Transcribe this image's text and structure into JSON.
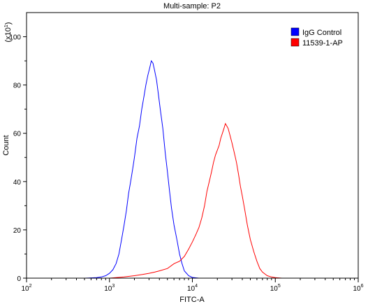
{
  "chart_data": {
    "type": "line",
    "title": "Multi-sample: P2",
    "xlabel": "FITC-A",
    "ylabel": "Count",
    "y_multiplier": "(x10",
    "y_multiplier_exp": "1",
    "y_multiplier_close": ")",
    "x_scale": "log",
    "xlim": [
      100,
      1000000
    ],
    "ylim": [
      0,
      110
    ],
    "x_ticks": [
      {
        "value": 100,
        "base": "10",
        "exp": "2"
      },
      {
        "value": 1000,
        "base": "10",
        "exp": "3"
      },
      {
        "value": 10000,
        "base": "10",
        "exp": "4"
      },
      {
        "value": 100000,
        "base": "10",
        "exp": "5"
      },
      {
        "value": 1000000,
        "base": "10",
        "exp": "6"
      }
    ],
    "y_ticks": [
      {
        "value": 0,
        "label": "0"
      },
      {
        "value": 20,
        "label": "20"
      },
      {
        "value": 40,
        "label": "40"
      },
      {
        "value": 60,
        "label": "60"
      },
      {
        "value": 80,
        "label": "80"
      },
      {
        "value": 100,
        "label": "100"
      }
    ],
    "legend_position": "top-right",
    "grid": false,
    "series": [
      {
        "name": "IgG Control",
        "color": "#0000ff",
        "points": [
          [
            500,
            0
          ],
          [
            700,
            0.2
          ],
          [
            800,
            0.5
          ],
          [
            900,
            1.0
          ],
          [
            1000,
            2.0
          ],
          [
            1100,
            3.5
          ],
          [
            1200,
            6
          ],
          [
            1300,
            10
          ],
          [
            1400,
            16
          ],
          [
            1500,
            22
          ],
          [
            1600,
            28
          ],
          [
            1700,
            35
          ],
          [
            1800,
            40
          ],
          [
            1900,
            45
          ],
          [
            2000,
            50
          ],
          [
            2150,
            58
          ],
          [
            2300,
            63
          ],
          [
            2450,
            70
          ],
          [
            2600,
            75
          ],
          [
            2750,
            80
          ],
          [
            2900,
            84
          ],
          [
            3050,
            87
          ],
          [
            3200,
            90
          ],
          [
            3350,
            89
          ],
          [
            3500,
            86
          ],
          [
            3700,
            82
          ],
          [
            3900,
            76
          ],
          [
            4100,
            70
          ],
          [
            4400,
            62
          ],
          [
            4700,
            52
          ],
          [
            5000,
            44
          ],
          [
            5300,
            36
          ],
          [
            5600,
            29
          ],
          [
            6000,
            22
          ],
          [
            6500,
            16
          ],
          [
            7000,
            10
          ],
          [
            7500,
            6
          ],
          [
            8000,
            3
          ],
          [
            9000,
            1
          ],
          [
            10000,
            0.3
          ],
          [
            12000,
            0
          ]
        ]
      },
      {
        "name": "11539-1-AP",
        "color": "#ff0000",
        "points": [
          [
            1000,
            0
          ],
          [
            1500,
            0.5
          ],
          [
            2000,
            1.0
          ],
          [
            2500,
            1.5
          ],
          [
            3000,
            2.0
          ],
          [
            3500,
            2.5
          ],
          [
            4000,
            3.0
          ],
          [
            5000,
            4.0
          ],
          [
            6000,
            6
          ],
          [
            7000,
            7
          ],
          [
            8000,
            9
          ],
          [
            9000,
            12
          ],
          [
            10000,
            15
          ],
          [
            11000,
            18
          ],
          [
            12000,
            21
          ],
          [
            13000,
            25
          ],
          [
            14000,
            30
          ],
          [
            15000,
            36
          ],
          [
            16000,
            40
          ],
          [
            17000,
            44
          ],
          [
            18000,
            48
          ],
          [
            19000,
            51
          ],
          [
            20000,
            53
          ],
          [
            21000,
            55
          ],
          [
            22000,
            58
          ],
          [
            23000,
            60
          ],
          [
            24000,
            62
          ],
          [
            25000,
            64
          ],
          [
            26000,
            63
          ],
          [
            27000,
            62
          ],
          [
            28000,
            60
          ],
          [
            29000,
            58
          ],
          [
            30000,
            56
          ],
          [
            32000,
            52
          ],
          [
            34000,
            48
          ],
          [
            36000,
            43
          ],
          [
            38000,
            38
          ],
          [
            40000,
            34
          ],
          [
            43000,
            28
          ],
          [
            46000,
            22
          ],
          [
            50000,
            16
          ],
          [
            55000,
            11
          ],
          [
            60000,
            7
          ],
          [
            65000,
            4
          ],
          [
            70000,
            2.5
          ],
          [
            80000,
            1.0
          ],
          [
            90000,
            0.5
          ],
          [
            100000,
            0.2
          ],
          [
            120000,
            0
          ]
        ]
      }
    ]
  }
}
